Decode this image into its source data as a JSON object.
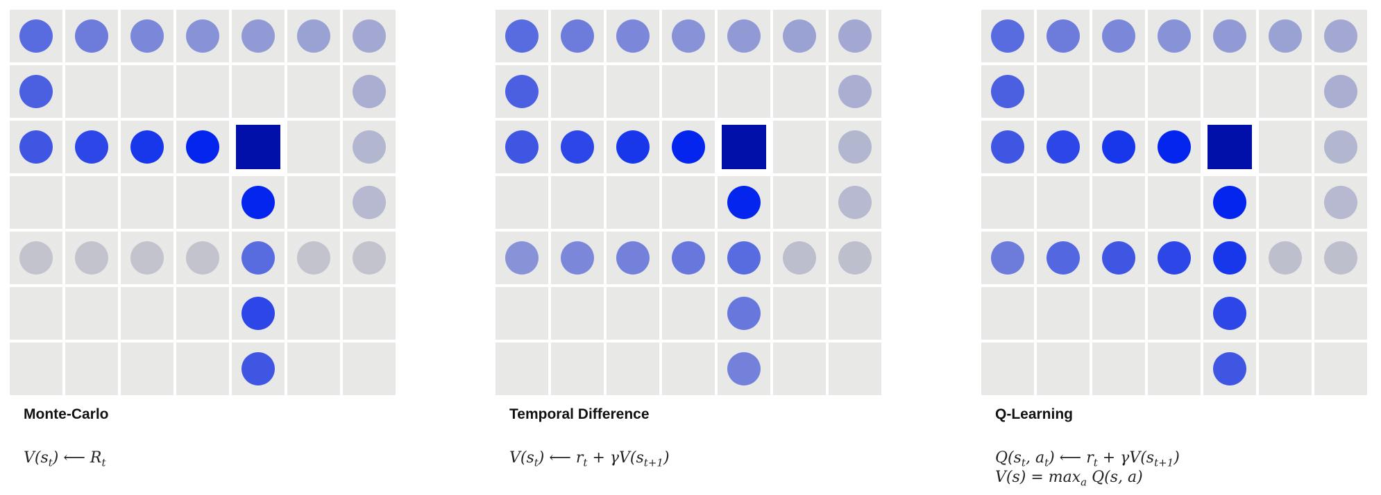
{
  "grid": {
    "rows": 7,
    "cols": 7,
    "goal": {
      "row": 2,
      "col": 4
    }
  },
  "colors": {
    "cell": "#e8e9e7",
    "goal": "#0010a8",
    "low": "#c6c6cc",
    "high": "#0022ee"
  },
  "panels": [
    {
      "id": "monte-carlo",
      "title": "Monte-Carlo",
      "formulas": [
        "V(s",
        "t",
        ")  ⟵  R",
        "t"
      ],
      "formula_lines": [
        {
          "parts": [
            [
              "V(s",
              ""
            ],
            [
              "t",
              "sub"
            ],
            [
              ")  ⟵  R",
              ""
            ],
            [
              "t",
              "sub"
            ]
          ]
        }
      ],
      "dots": [
        [
          0,
          0,
          0.55
        ],
        [
          0,
          1,
          0.45
        ],
        [
          0,
          2,
          0.38
        ],
        [
          0,
          3,
          0.32
        ],
        [
          0,
          4,
          0.27
        ],
        [
          0,
          5,
          0.22
        ],
        [
          0,
          6,
          0.18
        ],
        [
          1,
          0,
          0.62
        ],
        [
          1,
          6,
          0.14
        ],
        [
          2,
          0,
          0.68
        ],
        [
          2,
          1,
          0.78
        ],
        [
          2,
          2,
          0.88
        ],
        [
          2,
          3,
          0.98
        ],
        [
          2,
          6,
          0.1
        ],
        [
          3,
          4,
          0.98
        ],
        [
          3,
          6,
          0.08
        ],
        [
          4,
          0,
          0.02
        ],
        [
          4,
          1,
          0.02
        ],
        [
          4,
          2,
          0.02
        ],
        [
          4,
          3,
          0.02
        ],
        [
          4,
          4,
          0.55
        ],
        [
          4,
          5,
          0.02
        ],
        [
          4,
          6,
          0.02
        ],
        [
          5,
          4,
          0.78
        ],
        [
          6,
          4,
          0.68
        ]
      ]
    },
    {
      "id": "temporal-difference",
      "title": "Temporal Difference",
      "formula_lines": [
        {
          "parts": [
            [
              "V(s",
              ""
            ],
            [
              "t",
              "sub"
            ],
            [
              ")  ⟵  r",
              ""
            ],
            [
              "t",
              "sub"
            ],
            [
              " + γV(s",
              ""
            ],
            [
              "t+1",
              "sub"
            ],
            [
              ")",
              ""
            ]
          ]
        }
      ],
      "dots": [
        [
          0,
          0,
          0.55
        ],
        [
          0,
          1,
          0.45
        ],
        [
          0,
          2,
          0.38
        ],
        [
          0,
          3,
          0.32
        ],
        [
          0,
          4,
          0.27
        ],
        [
          0,
          5,
          0.22
        ],
        [
          0,
          6,
          0.18
        ],
        [
          1,
          0,
          0.62
        ],
        [
          1,
          6,
          0.14
        ],
        [
          2,
          0,
          0.68
        ],
        [
          2,
          1,
          0.78
        ],
        [
          2,
          2,
          0.88
        ],
        [
          2,
          3,
          0.98
        ],
        [
          2,
          6,
          0.1
        ],
        [
          3,
          4,
          0.98
        ],
        [
          3,
          6,
          0.08
        ],
        [
          4,
          0,
          0.32
        ],
        [
          4,
          1,
          0.38
        ],
        [
          4,
          2,
          0.42
        ],
        [
          4,
          3,
          0.48
        ],
        [
          4,
          4,
          0.55
        ],
        [
          4,
          5,
          0.05
        ],
        [
          4,
          6,
          0.04
        ],
        [
          5,
          4,
          0.48
        ],
        [
          6,
          4,
          0.42
        ]
      ]
    },
    {
      "id": "q-learning",
      "title": "Q-Learning",
      "formula_lines": [
        {
          "parts": [
            [
              "Q(s",
              ""
            ],
            [
              "t",
              "sub"
            ],
            [
              ", a",
              ""
            ],
            [
              "t",
              "sub"
            ],
            [
              ")  ⟵  r",
              ""
            ],
            [
              "t",
              "sub"
            ],
            [
              " + γV(s",
              ""
            ],
            [
              "t+1",
              "sub"
            ],
            [
              ")",
              ""
            ]
          ]
        },
        {
          "parts": [
            [
              "V(s) = max",
              ""
            ],
            [
              "a",
              "sub"
            ],
            [
              " Q(s, a)",
              ""
            ]
          ]
        }
      ],
      "dots": [
        [
          0,
          0,
          0.55
        ],
        [
          0,
          1,
          0.45
        ],
        [
          0,
          2,
          0.38
        ],
        [
          0,
          3,
          0.32
        ],
        [
          0,
          4,
          0.27
        ],
        [
          0,
          5,
          0.22
        ],
        [
          0,
          6,
          0.18
        ],
        [
          1,
          0,
          0.62
        ],
        [
          1,
          6,
          0.14
        ],
        [
          2,
          0,
          0.68
        ],
        [
          2,
          1,
          0.78
        ],
        [
          2,
          2,
          0.88
        ],
        [
          2,
          3,
          0.98
        ],
        [
          2,
          6,
          0.1
        ],
        [
          3,
          4,
          0.98
        ],
        [
          3,
          6,
          0.08
        ],
        [
          4,
          0,
          0.45
        ],
        [
          4,
          1,
          0.58
        ],
        [
          4,
          2,
          0.68
        ],
        [
          4,
          3,
          0.78
        ],
        [
          4,
          4,
          0.88
        ],
        [
          4,
          5,
          0.04
        ],
        [
          4,
          6,
          0.04
        ],
        [
          5,
          4,
          0.78
        ],
        [
          6,
          4,
          0.68
        ]
      ]
    }
  ]
}
